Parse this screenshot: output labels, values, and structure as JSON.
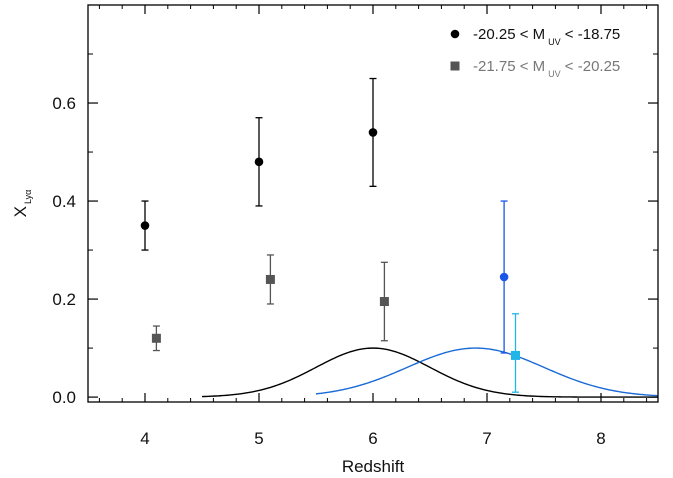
{
  "chart_data": {
    "type": "scatter",
    "xlabel": "Redshift",
    "ylabel": {
      "main": "X",
      "sub": "Lyα"
    },
    "xlim": [
      3.5,
      8.5
    ],
    "ylim": [
      -0.01,
      0.8
    ],
    "x_ticks": [
      4,
      5,
      6,
      7,
      8
    ],
    "y_ticks": [
      0.0,
      0.2,
      0.4,
      0.6
    ],
    "y_tick_labels": [
      "0.0",
      "0.2",
      "0.4",
      "0.6"
    ],
    "legend_position": "top-right",
    "legend": [
      {
        "marker": "circle",
        "color": "#000000",
        "text_color": "#111111",
        "prefix": "-20.25 < M",
        "sub": "UV",
        "suffix": " < -18.75"
      },
      {
        "marker": "square",
        "color": "#555555",
        "text_color": "#777777",
        "prefix": "-21.75 < M",
        "sub": "UV",
        "suffix": " < -20.25"
      }
    ],
    "series": [
      {
        "marker": "circle",
        "color": "#000000",
        "points": [
          {
            "x": 4.0,
            "y": 0.35,
            "ylow": 0.3,
            "yhigh": 0.4
          },
          {
            "x": 5.0,
            "y": 0.48,
            "ylow": 0.39,
            "yhigh": 0.57
          },
          {
            "x": 6.0,
            "y": 0.54,
            "ylow": 0.43,
            "yhigh": 0.65
          }
        ]
      },
      {
        "marker": "square",
        "color": "#555555",
        "points": [
          {
            "x": 4.1,
            "y": 0.12,
            "ylow": 0.095,
            "yhigh": 0.145
          },
          {
            "x": 5.1,
            "y": 0.24,
            "ylow": 0.19,
            "yhigh": 0.29
          },
          {
            "x": 6.1,
            "y": 0.195,
            "ylow": 0.115,
            "yhigh": 0.275
          }
        ]
      },
      {
        "marker": "circle",
        "color": "#1a56e8",
        "points": [
          {
            "x": 7.15,
            "y": 0.245,
            "ylow": 0.09,
            "yhigh": 0.4
          }
        ]
      },
      {
        "marker": "square",
        "color": "#22b5e8",
        "points": [
          {
            "x": 7.25,
            "y": 0.085,
            "ylow": 0.01,
            "yhigh": 0.17
          }
        ]
      }
    ],
    "curves": [
      {
        "type": "gaussian",
        "color": "#000000",
        "mu": 6.0,
        "sigma": 0.5,
        "amplitude": 0.1,
        "x_range": [
          4.5,
          8.5
        ]
      },
      {
        "type": "gaussian",
        "color": "#1a6ad6",
        "mu": 6.9,
        "sigma": 0.6,
        "amplitude": 0.1,
        "x_range": [
          5.5,
          8.5
        ]
      }
    ]
  }
}
